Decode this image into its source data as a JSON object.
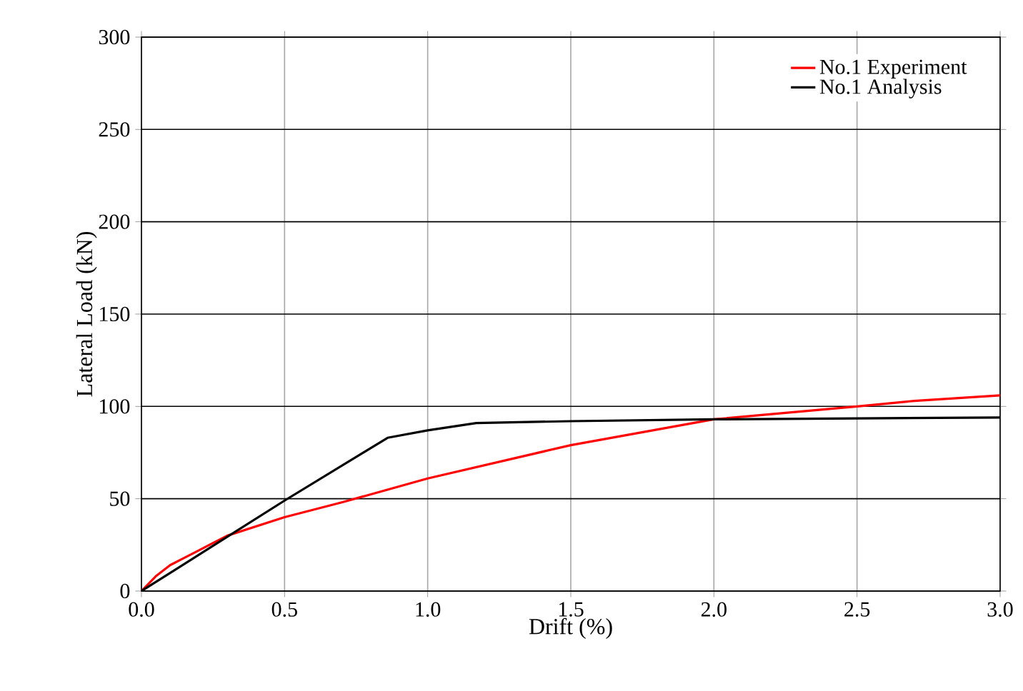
{
  "chart_data": {
    "type": "line",
    "xlabel": "Drift (%)",
    "ylabel": "Lateral Load (kN)",
    "xlim": [
      0,
      3
    ],
    "ylim": [
      0,
      300
    ],
    "xticks": [
      {
        "value": 0,
        "label": "0.0"
      },
      {
        "value": 0.5,
        "label": "0.5"
      },
      {
        "value": 1,
        "label": "1.0"
      },
      {
        "value": 1.5,
        "label": "1.5"
      },
      {
        "value": 2,
        "label": "2.0"
      },
      {
        "value": 2.5,
        "label": "2.5"
      },
      {
        "value": 3,
        "label": "3.0"
      }
    ],
    "yticks": [
      0,
      50,
      100,
      150,
      200,
      250,
      300
    ],
    "grid": true,
    "legend": "top right",
    "marker": "none",
    "line_style": "solid",
    "series": [
      {
        "name": "No.1 Experiment",
        "color": "#ff0000",
        "x": [
          0,
          0.05,
          0.1,
          0.2,
          0.3,
          0.5,
          0.7,
          1.0,
          1.5,
          2.0,
          2.5,
          2.7,
          3.0
        ],
        "values": [
          0,
          8,
          14,
          22,
          30,
          40,
          48,
          61,
          79,
          93,
          100,
          103,
          106
        ]
      },
      {
        "name": "No.1 Analysis",
        "color": "#000000",
        "x": [
          0,
          0.5,
          0.86,
          1.0,
          1.17,
          1.5,
          2.0,
          2.5,
          3.0
        ],
        "values": [
          0,
          49,
          83,
          87,
          91,
          92,
          93,
          93.5,
          94
        ]
      }
    ]
  }
}
